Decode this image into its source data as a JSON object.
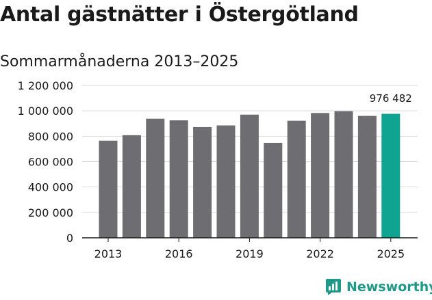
{
  "title": "Antal gästnätter i Östergötland",
  "subtitle": "Sommarmånaderna 2013–2025",
  "brand": {
    "name": "Newsworthy",
    "icon": "newsworthy-logo-icon",
    "color": "#1f9a88"
  },
  "chart_data": {
    "type": "bar",
    "categories": [
      "2013",
      "2014",
      "2015",
      "2016",
      "2017",
      "2018",
      "2019",
      "2020",
      "2021",
      "2022",
      "2023",
      "2024",
      "2025"
    ],
    "values": [
      765000,
      808000,
      938000,
      925000,
      872000,
      885000,
      970000,
      748000,
      922000,
      983000,
      997000,
      960000,
      976482
    ],
    "xticks": [
      "2013",
      "2016",
      "2019",
      "2022",
      "2025"
    ],
    "yticks": [
      "0",
      "200 000",
      "400 000",
      "600 000",
      "800 000",
      "1 000 000",
      "1 200 000"
    ],
    "ylim": [
      0,
      1200000
    ],
    "highlight": {
      "category": "2025",
      "label": "976 482"
    },
    "bar_color": "#6e6d72",
    "highlight_color": "#0fa391",
    "grid": true,
    "title": "",
    "xlabel": "",
    "ylabel": ""
  }
}
